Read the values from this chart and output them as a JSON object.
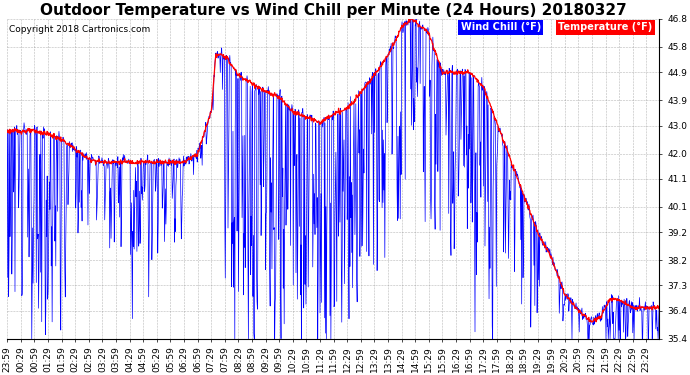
{
  "title": "Outdoor Temperature vs Wind Chill per Minute (24 Hours) 20180327",
  "copyright": "Copyright 2018 Cartronics.com",
  "ylim": [
    35.4,
    46.8
  ],
  "yticks": [
    35.4,
    36.4,
    37.3,
    38.2,
    39.2,
    40.1,
    41.1,
    42.0,
    43.0,
    43.9,
    44.9,
    45.8,
    46.8
  ],
  "temp_color": "#ff0000",
  "wind_color": "#0000ff",
  "bg_color": "#ffffff",
  "grid_color": "#888888",
  "legend_wind_bg": "#0000ff",
  "legend_temp_bg": "#ff0000",
  "title_fontsize": 11,
  "tick_fontsize": 6.5
}
